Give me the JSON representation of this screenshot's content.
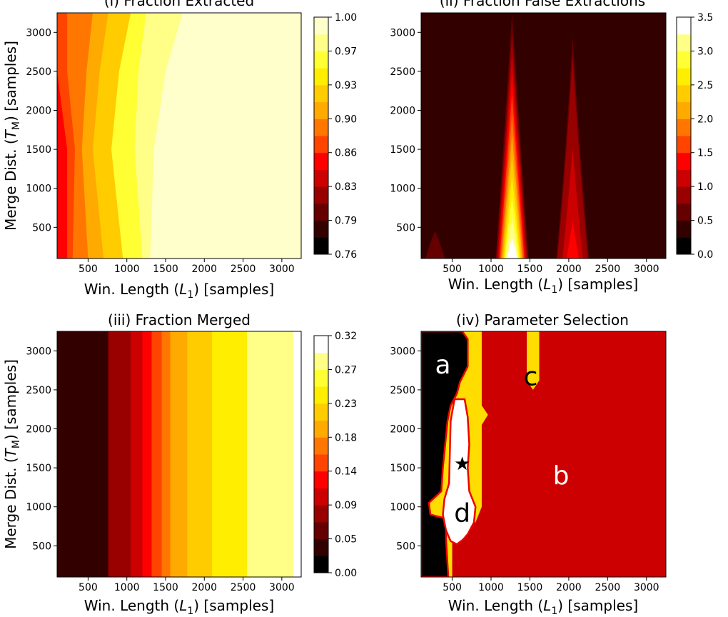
{
  "chart_data": [
    {
      "type": "heatmap",
      "title": "(i) Fraction Extracted",
      "xlabel": "Win. Length ($L_1$) [samples]",
      "xlabel_parts": [
        "Win. Length (",
        "L",
        "1",
        ") [samples]"
      ],
      "ylabel_parts": [
        "Merge Dist. (",
        "T",
        "M",
        ") [samples]"
      ],
      "x_ticks": [
        500,
        1000,
        1500,
        2000,
        2500,
        3000
      ],
      "y_ticks": [
        500,
        1000,
        1500,
        2000,
        2500,
        3000
      ],
      "xlim": [
        100,
        3250
      ],
      "ylim": [
        100,
        3250
      ],
      "colorbar_ticks": [
        "0.76",
        "0.79",
        "0.83",
        "0.86",
        "0.90",
        "0.93",
        "0.97",
        "1.00"
      ],
      "colorbar_range": [
        0.76,
        1.0
      ],
      "colormap": [
        "#000000",
        "#330000",
        "#660000",
        "#990000",
        "#cc0000",
        "#ff0000",
        "#ff4400",
        "#ff7700",
        "#ffaa00",
        "#ffcc00",
        "#ffee00",
        "#ffff33",
        "#ffff88",
        "#ffffcc"
      ],
      "levels": [
        {
          "value": 0.87,
          "x": [
            100,
            100,
            230,
            230
          ]
        },
        {
          "value": 0.89,
          "x": [
            230,
            230,
            330,
            300
          ]
        },
        {
          "value": 0.91,
          "x": [
            560,
            480,
            420,
            500
          ]
        },
        {
          "value": 0.93,
          "x": [
            760,
            650,
            560,
            700
          ]
        },
        {
          "value": 0.95,
          "x": [
            1050,
            900,
            800,
            950
          ]
        },
        {
          "value": 0.97,
          "x": [
            1250,
            1150,
            1100,
            1200
          ]
        },
        {
          "value": 0.99,
          "x": [
            1720,
            1500,
            1350,
            1300
          ]
        }
      ],
      "level_y": [
        3250,
        2500,
        1500,
        100
      ]
    },
    {
      "type": "heatmap",
      "title": "(ii) Fraction False Extractions",
      "x_ticks": [
        500,
        1000,
        1500,
        2000,
        2500,
        3000
      ],
      "y_ticks": [
        500,
        1000,
        1500,
        2000,
        2500,
        3000
      ],
      "xlim": [
        100,
        3250
      ],
      "ylim": [
        100,
        3250
      ],
      "colorbar_ticks": [
        "0.0",
        "0.5",
        "1.0",
        "1.5",
        "2.0",
        "2.5",
        "3.0",
        "3.5"
      ],
      "colorbar_range": [
        0.0,
        3.5
      ],
      "colormap": [
        "#000000",
        "#330000",
        "#660000",
        "#990000",
        "#cc0000",
        "#ff0000",
        "#ff4400",
        "#ff7700",
        "#ffaa00",
        "#ffcc00",
        "#ffee00",
        "#ffff33",
        "#ffff88",
        "#ffffff"
      ],
      "peaks": [
        {
          "x": 1270,
          "top": 3250,
          "width": [
            200,
            420
          ],
          "max": 3.5
        },
        {
          "x": 2050,
          "top": 2950,
          "width": [
            160,
            420
          ],
          "max": 1.4
        },
        {
          "x": 2800,
          "top": 800,
          "width": [
            250,
            500
          ],
          "max": 0.5
        },
        {
          "x": 280,
          "top": 450,
          "width": [
            150,
            250
          ],
          "max": 0.7
        }
      ],
      "background": 0.0
    },
    {
      "type": "heatmap",
      "title": "(iii) Fraction Merged",
      "x_ticks": [
        500,
        1000,
        1500,
        2000,
        2500,
        3000
      ],
      "y_ticks": [
        500,
        1000,
        1500,
        2000,
        2500,
        3000
      ],
      "xlim": [
        100,
        3250
      ],
      "ylim": [
        100,
        3250
      ],
      "colorbar_ticks": [
        "0.00",
        "0.05",
        "0.09",
        "0.14",
        "0.18",
        "0.23",
        "0.27",
        "0.32"
      ],
      "colorbar_range": [
        0.0,
        0.32
      ],
      "colormap": [
        "#000000",
        "#330000",
        "#660000",
        "#990000",
        "#cc0000",
        "#ff0000",
        "#ff4400",
        "#ff7700",
        "#ffaa00",
        "#ffcc00",
        "#ffee00",
        "#ffff33",
        "#ffff88",
        "#ffffff"
      ],
      "bands": [
        {
          "x": [
            100,
            760
          ],
          "value": 0.045
        },
        {
          "x": [
            760,
            1050
          ],
          "value": 0.07
        },
        {
          "x": [
            1050,
            1200
          ],
          "value": 0.095
        },
        {
          "x": [
            1200,
            1320
          ],
          "value": 0.12
        },
        {
          "x": [
            1320,
            1450
          ],
          "value": 0.145
        },
        {
          "x": [
            1450,
            1560
          ],
          "value": 0.17
        },
        {
          "x": [
            1560,
            1780
          ],
          "value": 0.195
        },
        {
          "x": [
            1780,
            2100
          ],
          "value": 0.22
        },
        {
          "x": [
            2100,
            2550
          ],
          "value": 0.245
        },
        {
          "x": [
            2550,
            3150
          ],
          "value": 0.275
        },
        {
          "x": [
            3150,
            3250
          ],
          "value": 0.3
        }
      ]
    },
    {
      "type": "heatmap",
      "title": "(iv) Parameter Selection",
      "x_ticks": [
        500,
        1000,
        1500,
        2000,
        2500,
        3000
      ],
      "y_ticks": [
        500,
        1000,
        1500,
        2000,
        2500,
        3000
      ],
      "xlim": [
        100,
        3250
      ],
      "ylim": [
        100,
        3250
      ],
      "regions": [
        {
          "label": "a",
          "color": "#000000",
          "label_at": [
            380,
            2800
          ]
        },
        {
          "label": "b",
          "color": "#cc0000",
          "label_at": [
            1900,
            1380
          ]
        },
        {
          "label": "c",
          "color": "#ffdd00",
          "label_at": [
            1510,
            2650
          ]
        },
        {
          "label": "d",
          "color": "#ffffff",
          "label_at": [
            630,
            900
          ]
        }
      ],
      "marker": {
        "symbol": "★",
        "x": 630,
        "y": 1540
      },
      "outline_colors": {
        "yellow": "#ffdd00",
        "red": "#ee0000"
      }
    }
  ]
}
